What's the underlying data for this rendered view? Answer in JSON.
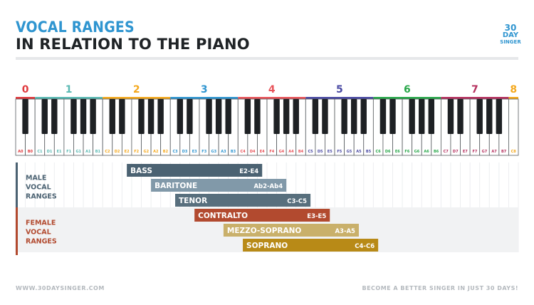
{
  "title": {
    "line1": "VOCAL RANGES",
    "line2": "IN RELATION TO THE PIANO"
  },
  "logo": {
    "line1": "30",
    "line2": "DAY",
    "line3": "SINGER"
  },
  "octaves": [
    {
      "label": "0",
      "color": "#e03a3e"
    },
    {
      "label": "1",
      "color": "#5ab9b3"
    },
    {
      "label": "2",
      "color": "#f4a81d"
    },
    {
      "label": "3",
      "color": "#2f95d0"
    },
    {
      "label": "4",
      "color": "#e8545a"
    },
    {
      "label": "5",
      "color": "#4a4aa3"
    },
    {
      "label": "6",
      "color": "#29a74a"
    },
    {
      "label": "7",
      "color": "#b5305e"
    },
    {
      "label": "8",
      "color": "#f4a81d"
    }
  ],
  "keys": [
    "A0",
    "B0",
    "C1",
    "D1",
    "E1",
    "F1",
    "G1",
    "A1",
    "B1",
    "C2",
    "D2",
    "E2",
    "F2",
    "G2",
    "A2",
    "B2",
    "C3",
    "D3",
    "E3",
    "F3",
    "G3",
    "A3",
    "B3",
    "C4",
    "D4",
    "E4",
    "F4",
    "G4",
    "A4",
    "B4",
    "C5",
    "D5",
    "E5",
    "F5",
    "G5",
    "A5",
    "B5",
    "C6",
    "D6",
    "E6",
    "F6",
    "G6",
    "A6",
    "B6",
    "C7",
    "D7",
    "E7",
    "F7",
    "G7",
    "A7",
    "B7",
    "C8"
  ],
  "groups": [
    {
      "label": "MALE VOCAL RANGES",
      "lines": [
        "MALE",
        "VOCAL",
        "RANGES"
      ],
      "color": "#4b6272"
    },
    {
      "label": "FEMALE VOCAL RANGES",
      "lines": [
        "FEMALE",
        "VOCAL",
        "RANGES"
      ],
      "color": "#b24a2f"
    }
  ],
  "ranges": [
    {
      "name": "BASS",
      "range": "E2-E4",
      "low": "E2",
      "high": "E4",
      "group": 0,
      "color": "#4b6272"
    },
    {
      "name": "BARITONE",
      "range": "Ab2-Ab4",
      "low": "Ab2",
      "high": "Ab4",
      "group": 0,
      "color": "#8199a9"
    },
    {
      "name": "TENOR",
      "range": "C3-C5",
      "low": "C3",
      "high": "C5",
      "group": 0,
      "color": "#586f7d"
    },
    {
      "name": "CONTRALTO",
      "range": "E3-E5",
      "low": "E3",
      "high": "E5",
      "group": 1,
      "color": "#b24a2f"
    },
    {
      "name": "MEZZO-SOPRANO",
      "range": "A3-A5",
      "low": "A3",
      "high": "A5",
      "group": 1,
      "color": "#c9b06a"
    },
    {
      "name": "SOPRANO",
      "range": "C4-C6",
      "low": "C4",
      "high": "C6",
      "group": 1,
      "color": "#b88a17"
    }
  ],
  "footer": {
    "left": "WWW.30DAYSINGER.COM",
    "right": "BECOME A BETTER SINGER IN JUST 30 DAYS!"
  }
}
